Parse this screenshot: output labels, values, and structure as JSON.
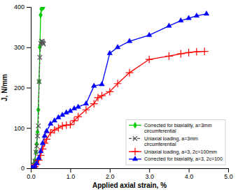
{
  "chart_data": {
    "type": "line",
    "xlabel": "Applied axial strain, %",
    "ylabel": "J, N/mm",
    "xlim": [
      0.0,
      5.0
    ],
    "ylim": [
      0,
      400
    ],
    "xticks": [
      {
        "value": 0.0,
        "label": "0.0"
      },
      {
        "value": 1.0,
        "label": "1.0"
      },
      {
        "value": 2.0,
        "label": "2.0"
      },
      {
        "value": 3.0,
        "label": "3.0"
      },
      {
        "value": 4.0,
        "label": "4.0"
      },
      {
        "value": 5.0,
        "label": "5.0"
      }
    ],
    "yticks": [
      0,
      100,
      200,
      300,
      400
    ],
    "legend": "lower right",
    "series": [
      {
        "name": "Corrected for biaxiality, a=3mm\ncircumferential",
        "color": "#00cc00",
        "marker": "diamond",
        "line_style": "solid",
        "x": [
          0.02,
          0.05,
          0.08,
          0.1,
          0.13,
          0.15,
          0.17,
          0.19,
          0.21,
          0.23,
          0.25,
          0.27,
          0.29,
          0.3,
          0.31,
          0.32
        ],
        "values": [
          0,
          2,
          8,
          18,
          40,
          60,
          90,
          145,
          215,
          300,
          380,
          395,
          400,
          400,
          400,
          400
        ]
      },
      {
        "name": "Uniaxial loading, a=3mm\ncircumferential",
        "color": "#555555",
        "marker": "x",
        "line_style": "dashed",
        "x": [
          0.02,
          0.05,
          0.08,
          0.1,
          0.13,
          0.15,
          0.17,
          0.19,
          0.21,
          0.23,
          0.25,
          0.27,
          0.29,
          0.3,
          0.31,
          0.32
        ],
        "values": [
          0,
          2,
          8,
          18,
          40,
          55,
          80,
          105,
          215,
          275,
          310,
          315,
          315,
          312,
          310,
          308
        ]
      },
      {
        "name": "Uniaxial loading, a=3, 2c=100mm",
        "color": "#ff0000",
        "marker": "plus",
        "line_style": "solid",
        "x": [
          0.02,
          0.05,
          0.1,
          0.15,
          0.2,
          0.25,
          0.3,
          0.35,
          0.4,
          0.5,
          0.6,
          0.7,
          0.8,
          0.9,
          1.0,
          1.1,
          1.2,
          1.4,
          1.6,
          1.7,
          1.8,
          2.0,
          2.2,
          2.5,
          3.0,
          3.5,
          3.8,
          4.0,
          4.2,
          4.4
        ],
        "values": [
          0,
          1,
          4,
          10,
          20,
          32,
          48,
          62,
          72,
          88,
          95,
          100,
          105,
          107,
          108,
          118,
          128,
          145,
          160,
          175,
          180,
          190,
          210,
          237,
          270,
          278,
          284,
          287,
          289,
          290
        ]
      },
      {
        "name": "Corrected for biaxiality, a=3, 2c=100",
        "color": "#0000ff",
        "marker": "triangle",
        "line_style": "solid",
        "x": [
          0.02,
          0.05,
          0.1,
          0.15,
          0.2,
          0.25,
          0.3,
          0.35,
          0.4,
          0.5,
          0.6,
          0.7,
          0.8,
          0.9,
          1.0,
          1.1,
          1.2,
          1.4,
          1.6,
          1.8,
          2.0,
          2.2,
          2.5,
          3.0,
          3.5,
          3.8,
          4.0,
          4.2,
          4.45
        ],
        "values": [
          0,
          1,
          5,
          12,
          25,
          42,
          62,
          80,
          92,
          110,
          118,
          126,
          132,
          138,
          142,
          148,
          152,
          160,
          204,
          208,
          285,
          300,
          315,
          330,
          353,
          366,
          372,
          378,
          383
        ]
      }
    ]
  }
}
